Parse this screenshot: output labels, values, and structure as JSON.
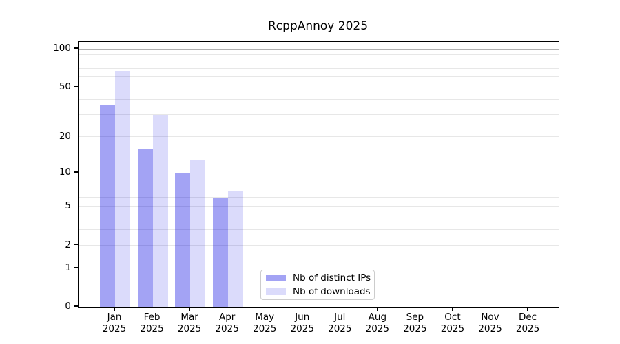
{
  "title": "RcppAnnoy 2025",
  "chart_data": {
    "type": "bar",
    "title": "RcppAnnoy 2025",
    "y_scale": "log1p",
    "ylim": [
      0,
      114
    ],
    "grid": true,
    "categories": [
      "Jan",
      "Feb",
      "Mar",
      "Apr",
      "May",
      "Jun",
      "Jul",
      "Aug",
      "Sep",
      "Oct",
      "Nov",
      "Dec"
    ],
    "year_label": "2025",
    "series": [
      {
        "name": "Nb of distinct IPs",
        "color": "rgba(0,0,224,0.36)",
        "values": [
          36,
          16,
          10,
          6,
          0,
          0,
          0,
          0,
          0,
          0,
          0,
          0
        ]
      },
      {
        "name": "Nb of downloads",
        "color": "rgba(0,0,224,0.14)",
        "values": [
          67,
          30,
          13,
          7,
          0,
          0,
          0,
          0,
          0,
          0,
          0,
          0
        ]
      }
    ],
    "y_tick_labels": [
      "0",
      "1",
      "2",
      "5",
      "10",
      "20",
      "50",
      "100"
    ],
    "y_ticks": [
      0,
      1,
      2,
      5,
      10,
      20,
      50,
      100
    ],
    "y_gridlines_major": [
      1,
      10,
      100
    ],
    "y_gridlines_minor": [
      2,
      3,
      4,
      5,
      6,
      7,
      8,
      9,
      20,
      30,
      40,
      50,
      60,
      70,
      80,
      90
    ],
    "legend_position": "lower center inside plot"
  },
  "legend": {
    "items": [
      {
        "label": "Nb of distinct IPs",
        "swatch_color": "rgba(0,0,224,0.36)"
      },
      {
        "label": "Nb of downloads",
        "swatch_color": "rgba(0,0,224,0.14)"
      }
    ]
  },
  "colors": {
    "background": "#ffffff",
    "major_grid": "#b0b0b0",
    "minor_grid": "#e7e7e7",
    "spine": "#000000",
    "text": "#000000"
  }
}
